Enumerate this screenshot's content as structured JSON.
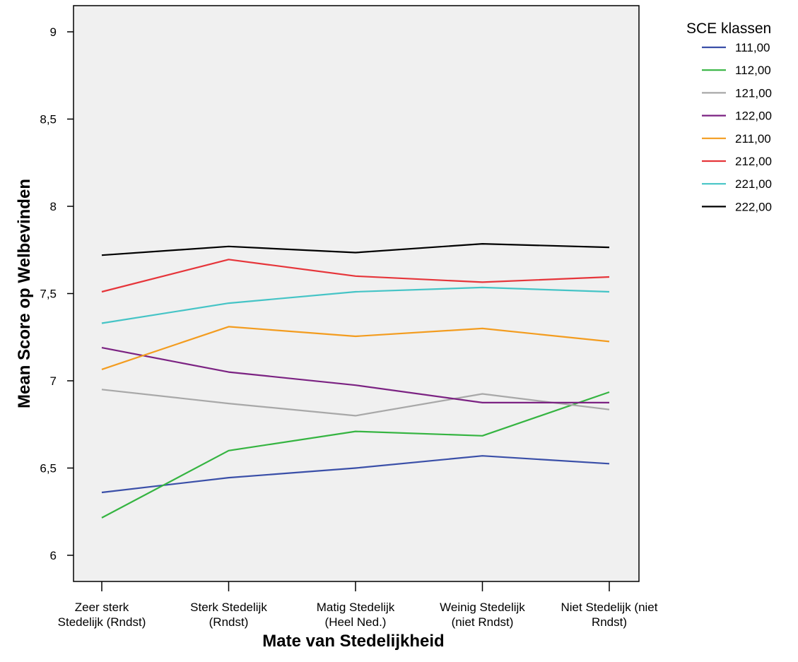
{
  "chart_data": {
    "type": "line",
    "xlabel": "Mate van Stedelijkheid",
    "ylabel": "Mean Score op Welbevinden",
    "categories": [
      [
        "Zeer sterk",
        "Stedelijk (Rndst)"
      ],
      [
        "Sterk Stedelijk",
        "(Rndst)"
      ],
      [
        "Matig Stedelijk",
        "(Heel Ned.)"
      ],
      [
        "Weinig Stedelijk",
        "(niet Rndst)"
      ],
      [
        "Niet Stedelijk (niet",
        "Rndst)"
      ]
    ],
    "ylim": [
      5.85,
      9.15
    ],
    "yticks": [
      6,
      6.5,
      7,
      7.5,
      8,
      8.5,
      9
    ],
    "ytick_labels": [
      "6",
      "6,5",
      "7",
      "7,5",
      "8",
      "8,5",
      "9"
    ],
    "legend": {
      "title": "SCE klassen",
      "position": "top-right, outside plot"
    },
    "grid": false,
    "plot_background": "#f0f0f0",
    "series": [
      {
        "name": "111,00",
        "color": "#3a4fa8",
        "values": [
          6.36,
          6.445,
          6.5,
          6.57,
          6.525
        ]
      },
      {
        "name": "112,00",
        "color": "#35b441",
        "values": [
          6.215,
          6.6,
          6.71,
          6.685,
          6.935
        ]
      },
      {
        "name": "121,00",
        "color": "#a8a8a8",
        "values": [
          6.95,
          6.87,
          6.8,
          6.925,
          6.835
        ]
      },
      {
        "name": "122,00",
        "color": "#7b2282",
        "values": [
          7.19,
          7.05,
          6.975,
          6.875,
          6.875
        ]
      },
      {
        "name": "211,00",
        "color": "#f39c1f",
        "values": [
          7.065,
          7.31,
          7.255,
          7.3,
          7.225
        ]
      },
      {
        "name": "212,00",
        "color": "#e6353a",
        "values": [
          7.51,
          7.695,
          7.6,
          7.565,
          7.595
        ]
      },
      {
        "name": "221,00",
        "color": "#45c4c6",
        "values": [
          7.33,
          7.445,
          7.51,
          7.535,
          7.51
        ]
      },
      {
        "name": "222,00",
        "color": "#000000",
        "values": [
          7.72,
          7.77,
          7.735,
          7.785,
          7.765
        ]
      }
    ]
  }
}
